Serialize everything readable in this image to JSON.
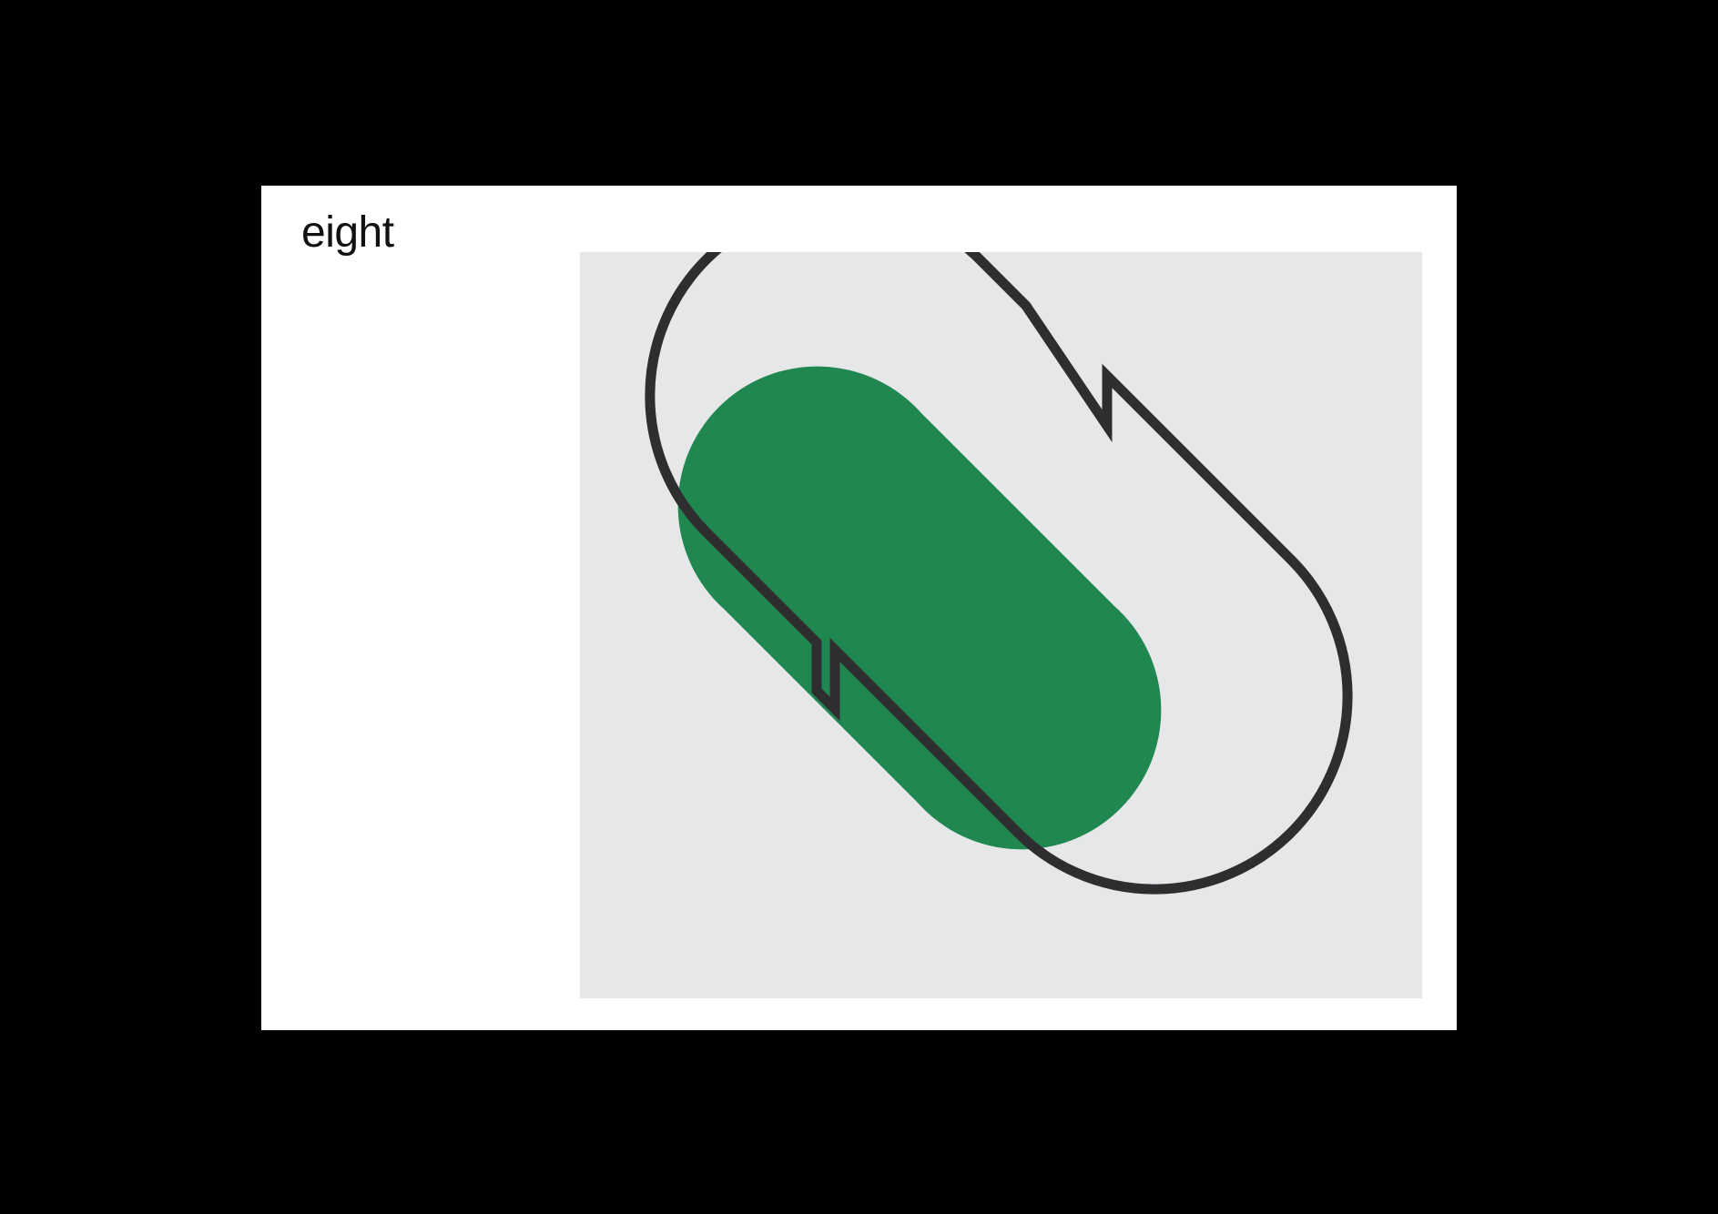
{
  "card": {
    "title": "eight"
  },
  "colors": {
    "backdrop": "#000000",
    "card": "#ffffff",
    "panel": "#e6e7e9",
    "fill_shape": "#208751",
    "outline": "#2e2e30",
    "title_text": "#111111"
  }
}
